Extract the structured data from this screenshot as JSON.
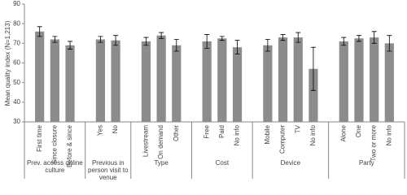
{
  "chart_data": {
    "type": "bar",
    "y_label": "Mean quality index (N=1,213)",
    "ylim": [
      30,
      90
    ],
    "yticks": [
      30,
      40,
      50,
      60,
      70,
      80,
      90
    ],
    "color": "#8c8c8c",
    "grid": false,
    "groups": [
      {
        "name": "Prev. access online culture",
        "categories": [
          "First time",
          "Since closure",
          "Before & since"
        ],
        "values": [
          76,
          72,
          69
        ],
        "errors": [
          2.5,
          1.5,
          2
        ]
      },
      {
        "name": "Previous in person visit to venue",
        "categories": [
          "Yes",
          "No"
        ],
        "values": [
          72,
          71.5
        ],
        "errors": [
          1.5,
          2.5
        ]
      },
      {
        "name": "Type",
        "categories": [
          "Livestream",
          "On demand",
          "Other"
        ],
        "values": [
          71,
          74,
          69
        ],
        "errors": [
          2,
          1.5,
          3
        ]
      },
      {
        "name": "Cost",
        "categories": [
          "Free",
          "Paid",
          "No info"
        ],
        "values": [
          71,
          72.5,
          68
        ],
        "errors": [
          3.5,
          1,
          3.5
        ]
      },
      {
        "name": "Device",
        "categories": [
          "Mobile",
          "Computer",
          "TV",
          "No info"
        ],
        "values": [
          69,
          73,
          73,
          57
        ],
        "errors": [
          3,
          1.5,
          2.5,
          11
        ]
      },
      {
        "name": "Party",
        "categories": [
          "Alone",
          "One",
          "Two or more",
          "No info"
        ],
        "values": [
          71,
          72.5,
          73,
          70
        ],
        "errors": [
          2,
          1.5,
          3,
          4
        ]
      }
    ]
  }
}
